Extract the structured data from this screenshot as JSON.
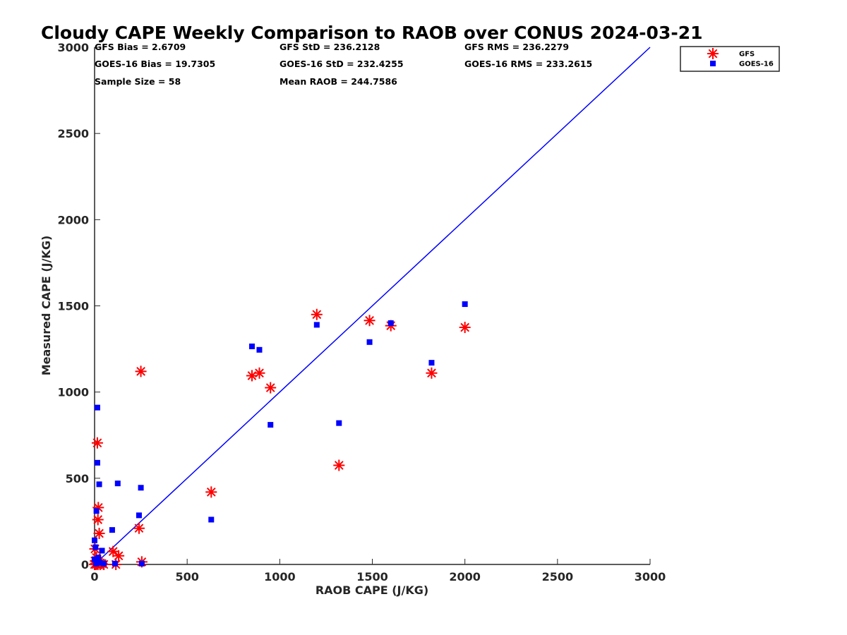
{
  "chart_data": {
    "type": "scatter",
    "title": "Cloudy CAPE Weekly Comparison to RAOB over CONUS 2024-03-21",
    "xlabel": "RAOB CAPE (J/KG)",
    "ylabel": "Measured CAPE (J/KG)",
    "xlim": [
      0,
      3000
    ],
    "ylim": [
      0,
      3000
    ],
    "xticks": [
      0,
      500,
      1000,
      1500,
      2000,
      2500,
      3000
    ],
    "yticks": [
      0,
      500,
      1000,
      1500,
      2000,
      2500,
      3000
    ],
    "grid": false,
    "legend_position": "top-right-outside",
    "stats": [
      [
        "GFS Bias = 2.6709",
        "GFS StD = 236.2128",
        "GFS RMS = 236.2279"
      ],
      [
        "GOES-16 Bias = 19.7305",
        "GOES-16 StD = 232.4255",
        "GOES-16 RMS = 233.2615"
      ],
      [
        "Sample Size = 58",
        "Mean RAOB = 244.7586",
        ""
      ]
    ],
    "reference_line": {
      "x": [
        0,
        3000
      ],
      "y": [
        0,
        3000
      ],
      "color": "#0000ff"
    },
    "series": [
      {
        "name": "GFS",
        "marker": "asterisk",
        "color": "#ff0000",
        "points": [
          [
            0,
            0
          ],
          [
            2,
            90
          ],
          [
            5,
            20
          ],
          [
            6,
            5
          ],
          [
            8,
            0
          ],
          [
            10,
            40
          ],
          [
            12,
            5
          ],
          [
            15,
            10
          ],
          [
            18,
            0
          ],
          [
            20,
            330
          ],
          [
            15,
            705
          ],
          [
            18,
            260
          ],
          [
            25,
            180
          ],
          [
            30,
            0
          ],
          [
            40,
            5
          ],
          [
            50,
            0
          ],
          [
            100,
            75
          ],
          [
            130,
            50
          ],
          [
            115,
            0
          ],
          [
            240,
            210
          ],
          [
            250,
            1120
          ],
          [
            255,
            15
          ],
          [
            630,
            420
          ],
          [
            850,
            1095
          ],
          [
            890,
            1110
          ],
          [
            950,
            1025
          ],
          [
            1200,
            1450
          ],
          [
            1320,
            575
          ],
          [
            1485,
            1415
          ],
          [
            1600,
            1385
          ],
          [
            1820,
            1110
          ],
          [
            2000,
            1375
          ]
        ]
      },
      {
        "name": "GOES-16",
        "marker": "square",
        "color": "#0000ff",
        "points": [
          [
            0,
            30
          ],
          [
            0,
            140
          ],
          [
            5,
            100
          ],
          [
            8,
            5
          ],
          [
            10,
            310
          ],
          [
            15,
            910
          ],
          [
            15,
            590
          ],
          [
            20,
            40
          ],
          [
            25,
            465
          ],
          [
            30,
            10
          ],
          [
            40,
            80
          ],
          [
            50,
            5
          ],
          [
            95,
            200
          ],
          [
            110,
            5
          ],
          [
            125,
            470
          ],
          [
            240,
            285
          ],
          [
            250,
            445
          ],
          [
            255,
            5
          ],
          [
            630,
            260
          ],
          [
            850,
            1265
          ],
          [
            890,
            1245
          ],
          [
            950,
            810
          ],
          [
            1200,
            1390
          ],
          [
            1320,
            820
          ],
          [
            1485,
            1290
          ],
          [
            1600,
            1400
          ],
          [
            1820,
            1170
          ],
          [
            2000,
            1510
          ]
        ]
      }
    ]
  }
}
